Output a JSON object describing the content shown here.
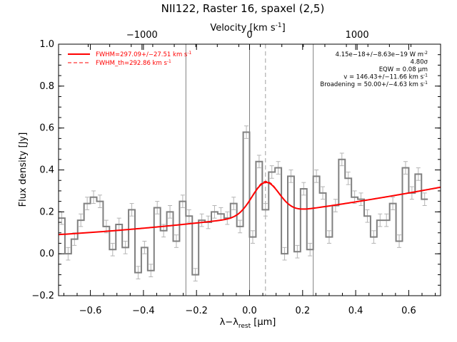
{
  "chart_data": {
    "type": "line",
    "title": "NII122, Raster 16, spaxel (2,5)",
    "xlabel": "λ−λ_rest [μm]",
    "xlabel_main": "λ−λ",
    "xlabel_sub": "rest",
    "xlabel_unit": " [μm]",
    "ylabel": "Flux density [Jy]",
    "top_xlabel": "Velocity [km s⁻¹]",
    "top_xlabel_main": "Velocity [km s",
    "top_xlabel_sup": "-1",
    "top_xlabel_close": "]",
    "xlim": [
      -0.72,
      0.72
    ],
    "ylim": [
      -0.2,
      1.0
    ],
    "velocity_per_micron": 2466,
    "x_ticks": [
      -0.6,
      -0.4,
      -0.2,
      0.0,
      0.2,
      0.4,
      0.6
    ],
    "x_tick_labels": [
      "−0.6",
      "−0.4",
      "−0.2",
      "0.0",
      "0.2",
      "0.4",
      "0.6"
    ],
    "y_ticks": [
      -0.2,
      0.0,
      0.2,
      0.4,
      0.6,
      0.8,
      1.0
    ],
    "y_tick_labels": [
      "−0.2",
      "0.0",
      "0.2",
      "0.4",
      "0.6",
      "0.8",
      "1.0"
    ],
    "top_ticks": [
      -1000,
      0,
      1000
    ],
    "top_tick_labels": [
      "−1000",
      "0",
      "1000"
    ],
    "vertical_lines": [
      -0.24,
      0.0,
      0.24
    ],
    "line_center": 0.06,
    "series": [
      {
        "style": "histogram-step",
        "color": "#808080",
        "bin_width": 0.024,
        "x_start": -0.72,
        "values": [
          0.17,
          0.0,
          0.07,
          0.16,
          0.24,
          0.27,
          0.25,
          0.13,
          0.02,
          0.14,
          0.03,
          0.21,
          -0.09,
          0.03,
          -0.08,
          0.22,
          0.11,
          0.2,
          0.06,
          0.25,
          0.18,
          -0.1,
          0.16,
          0.15,
          0.2,
          0.19,
          0.17,
          0.24,
          0.13,
          0.58,
          0.08,
          0.44,
          0.21,
          0.39,
          0.41,
          0.0,
          0.37,
          0.01,
          0.31,
          0.02,
          0.37,
          0.29,
          0.08,
          0.23,
          0.45,
          0.36,
          0.27,
          0.26,
          0.18,
          0.08,
          0.16,
          0.16,
          0.24,
          0.06,
          0.41,
          0.29,
          0.38,
          0.26
        ],
        "errors": [
          0.03,
          0.03,
          0.03,
          0.03,
          0.03,
          0.03,
          0.03,
          0.03,
          0.03,
          0.03,
          0.03,
          0.03,
          0.03,
          0.03,
          0.03,
          0.03,
          0.03,
          0.03,
          0.03,
          0.03,
          0.03,
          0.03,
          0.03,
          0.03,
          0.03,
          0.03,
          0.03,
          0.03,
          0.03,
          0.03,
          0.03,
          0.03,
          0.03,
          0.03,
          0.03,
          0.03,
          0.03,
          0.03,
          0.03,
          0.03,
          0.03,
          0.03,
          0.03,
          0.03,
          0.03,
          0.03,
          0.03,
          0.03,
          0.03,
          0.03,
          0.03,
          0.03,
          0.03,
          0.03,
          0.03,
          0.03,
          0.03,
          0.03
        ]
      },
      {
        "name": "FWHM=297.09+/−27.51 km s⁻¹",
        "style": "thick-line",
        "color": "#ff0000",
        "model": "gaussian+quadratic",
        "baseline": [
          0.176,
          0.157,
          0.055
        ],
        "amplitude": 0.155,
        "center": 0.06,
        "fwhm": 0.1205
      },
      {
        "name": "FWHM_th=292.86 km s⁻¹",
        "style": "dashed",
        "color": "#ff0000",
        "model": "gaussian+quadratic",
        "baseline": [
          0.176,
          0.157,
          0.055
        ],
        "amplitude": 0.16,
        "center": 0.06,
        "fwhm": 0.1188
      }
    ],
    "legend": {
      "placement": "top-left",
      "entries": [
        {
          "text": "FWHM=297.09+/−27.51 km s",
          "sup": "-1"
        },
        {
          "text": "FWHM_th=292.86 km s",
          "sup": "-1"
        }
      ]
    },
    "annotations": {
      "placement": "top-right",
      "lines": [
        {
          "text": "4.15e−18+/−8.63e−19 W m",
          "sup": "-2"
        },
        {
          "text": "4.80σ",
          "sup": ""
        },
        {
          "text": "EQW = 0.08 μm",
          "sup": ""
        },
        {
          "text": "v = 146.43+/−11.66 km s",
          "sup": "-1"
        },
        {
          "text": "Broadening = 50.00+/−4.63 km s",
          "sup": "-1"
        }
      ]
    },
    "colors": {
      "data": "#808080",
      "fit": "#ff0000",
      "axis": "#000000",
      "reference": "#808080"
    }
  }
}
